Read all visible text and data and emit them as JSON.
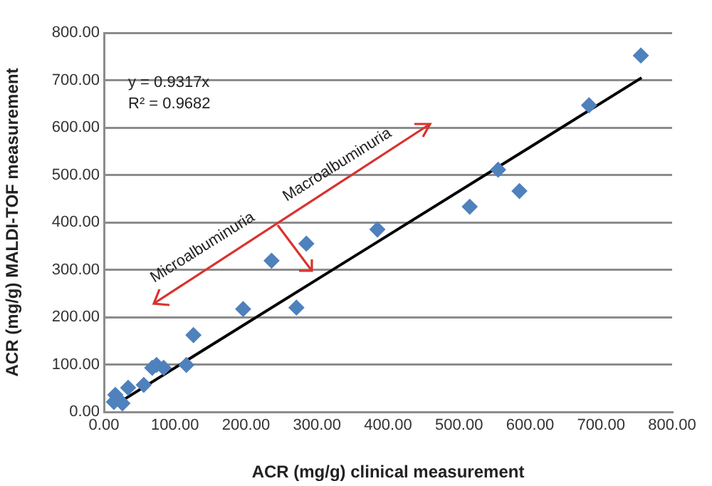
{
  "chart_data": {
    "type": "scatter",
    "xlabel": "ACR (mg/g) clinical measurement",
    "ylabel": "ACR (mg/g) MALDI-TOF measurement",
    "xlim": [
      0,
      800
    ],
    "ylim": [
      0,
      800
    ],
    "xticks": [
      {
        "value": 0,
        "label": "0.00"
      },
      {
        "value": 100,
        "label": "100.00"
      },
      {
        "value": 200,
        "label": "200.00"
      },
      {
        "value": 300,
        "label": "300.00"
      },
      {
        "value": 400,
        "label": "400.00"
      },
      {
        "value": 500,
        "label": "500.00"
      },
      {
        "value": 600,
        "label": "600.00"
      },
      {
        "value": 700,
        "label": "700.00"
      },
      {
        "value": 800,
        "label": "800.00"
      }
    ],
    "yticks": [
      {
        "value": 0,
        "label": "0.00"
      },
      {
        "value": 100,
        "label": "100.00"
      },
      {
        "value": 200,
        "label": "200.00"
      },
      {
        "value": 300,
        "label": "300.00"
      },
      {
        "value": 400,
        "label": "400.00"
      },
      {
        "value": 500,
        "label": "500.00"
      },
      {
        "value": 600,
        "label": "600.00"
      },
      {
        "value": 700,
        "label": "700.00"
      },
      {
        "value": 800,
        "label": "800.00"
      }
    ],
    "grid": "y",
    "legend": false,
    "series": [
      {
        "color": "#4f81bd",
        "marker": "diamond",
        "x": [
          16,
          14,
          26,
          34,
          56,
          68,
          74,
          84,
          116,
          126,
          196,
          236,
          271,
          285,
          385,
          515,
          555,
          585,
          683,
          756
        ],
        "values": [
          36,
          21,
          18,
          51,
          57,
          93,
          99,
          93,
          99,
          162,
          217,
          319,
          220,
          355,
          385,
          433,
          511,
          466,
          647,
          752
        ]
      },
      {
        "type": "line",
        "color": "#000000",
        "marker": "none",
        "x": [
          14,
          757
        ],
        "values": [
          13,
          705
        ]
      }
    ],
    "annotations": [
      "y = 0.9317x",
      "R² = 0.9682",
      "Microalbuminuria",
      "Macroalbuminuria"
    ]
  }
}
